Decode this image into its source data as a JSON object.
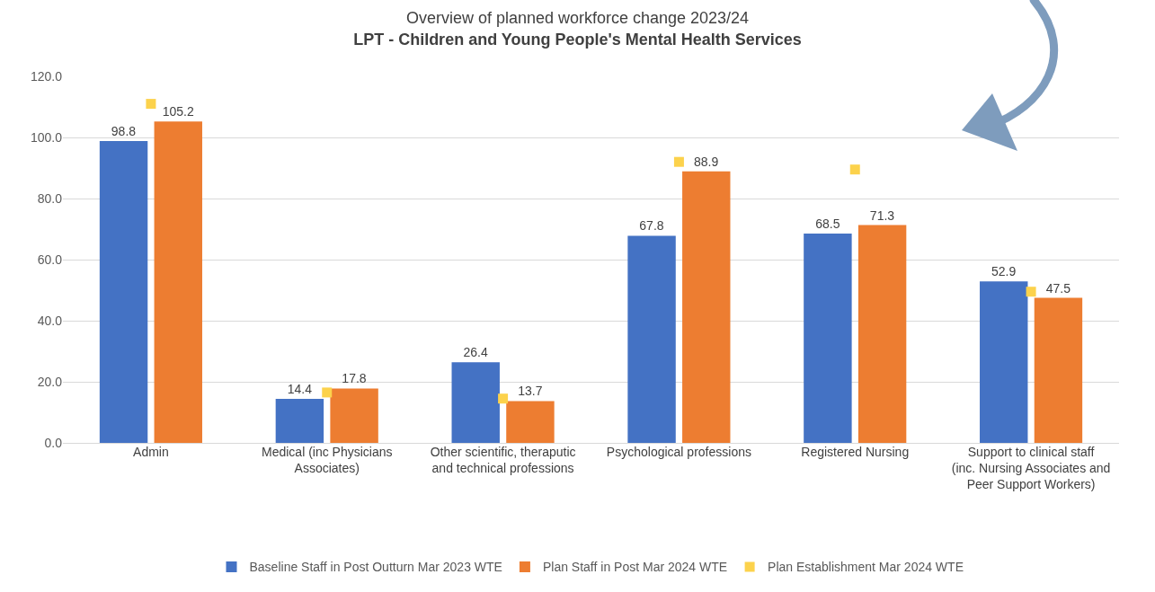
{
  "chart_data": {
    "type": "bar",
    "title": "Overview of planned workforce change 2023/24",
    "subtitle": "LPT - Children and Young People's Mental Health Services",
    "categories": [
      "Admin",
      "Medical (inc Physicians Associates)",
      "Other scientific, theraputic and technical professions",
      "Psychological professions",
      "Registered Nursing",
      "Support to clinical staff (inc. Nursing Associates and Peer Support Workers)"
    ],
    "series": [
      {
        "name": "Baseline Staff in Post Outturn Mar 2023 WTE",
        "color": "#4472c4",
        "values": [
          98.8,
          14.4,
          26.4,
          67.8,
          68.5,
          52.9
        ],
        "value_labels": [
          "98.8",
          "14.4",
          "26.4",
          "67.8",
          "68.5",
          "52.9"
        ]
      },
      {
        "name": "Plan Staff in Post Mar 2024 WTE",
        "color": "#ed7d31",
        "values": [
          105.2,
          17.8,
          13.7,
          88.9,
          71.3,
          47.5
        ],
        "value_labels": [
          "105.2",
          "17.8",
          "13.7",
          "88.9",
          "71.3",
          "47.5"
        ]
      },
      {
        "name": "Plan Establishment Mar 2024 WTE",
        "type": "scatter",
        "color": "#fcd24c",
        "marker": "square",
        "values": [
          111,
          16.5,
          14.5,
          92,
          89.5,
          49.5
        ]
      }
    ],
    "ylim": [
      0,
      120
    ],
    "yticks": [
      {
        "value": 0,
        "label": "0.0"
      },
      {
        "value": 20,
        "label": "20.0"
      },
      {
        "value": 40,
        "label": "40.0"
      },
      {
        "value": 60,
        "label": "60.0"
      },
      {
        "value": 80,
        "label": "80.0"
      },
      {
        "value": 100,
        "label": "100.0"
      },
      {
        "value": 120,
        "label": "120.0"
      }
    ],
    "grid": "y",
    "legend": "bottom"
  }
}
